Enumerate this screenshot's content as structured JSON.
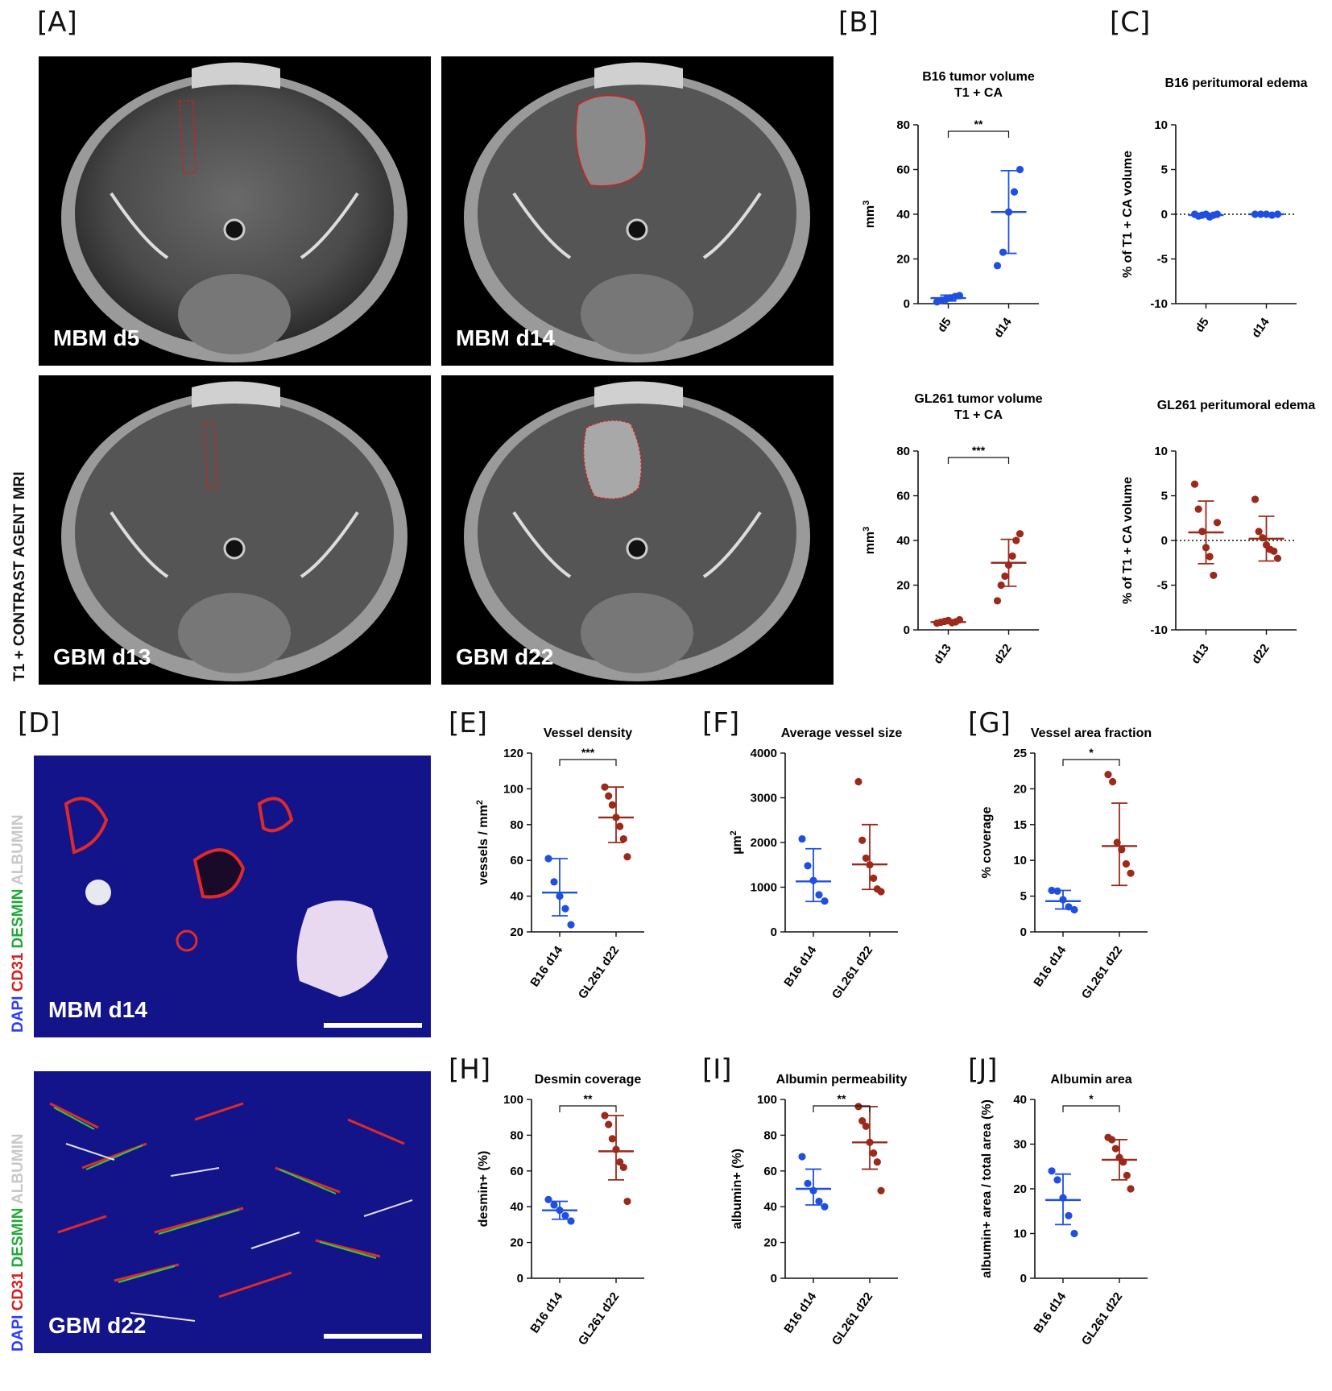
{
  "panel_labels": [
    "[A]",
    "[B]",
    "[C]",
    "[D]",
    "[E]",
    "[F]",
    "[G]",
    "[H]",
    "[I]",
    "[J]"
  ],
  "mri": {
    "side_label": "T1 + CONTRAST AGENT MRI",
    "images": [
      "MBM d5",
      "MBM d14",
      "GBM d13",
      "GBM d22"
    ]
  },
  "micro": {
    "images": [
      "MBM d14",
      "GBM d22"
    ],
    "stain_legend": [
      {
        "text": "DAPI",
        "color": "#2b3cff"
      },
      {
        "text": "CD31",
        "color": "#d42020"
      },
      {
        "text": "DESMIN",
        "color": "#22a83a"
      },
      {
        "text": "ALBUMIN",
        "color": "#c8c8c8"
      }
    ]
  },
  "colors": {
    "blue": "#1f4fe0",
    "red": "#9b2a1c"
  },
  "chart_data": [
    {
      "id": "B1",
      "type": "scatter",
      "title": [
        "B16 tumor volume",
        "T1 + CA"
      ],
      "ylabel": "mm3",
      "ylim": [
        0,
        80
      ],
      "yticks": [
        0,
        20,
        40,
        60,
        80
      ],
      "categories": [
        "d5",
        "d14"
      ],
      "zero_line": false,
      "groups": [
        {
          "category": "d5",
          "color": "blue",
          "mean": 2.5,
          "sd_low": 1.2,
          "sd_high": 3.8,
          "points": [
            0.8,
            1.5,
            2.0,
            2.6,
            3.2,
            3.6
          ]
        },
        {
          "category": "d14",
          "color": "blue",
          "mean": 41,
          "sd_low": 22.5,
          "sd_high": 59.5,
          "points": [
            17,
            23,
            41,
            50,
            60
          ]
        }
      ],
      "sig": "**"
    },
    {
      "id": "C1",
      "type": "scatter",
      "title": [
        "B16 peritumoral edema"
      ],
      "ylabel": "% of T1 + CA volume",
      "ylim": [
        -10,
        10
      ],
      "yticks": [
        -10,
        -5,
        0,
        5,
        10
      ],
      "categories": [
        "d5",
        "d14"
      ],
      "zero_line": true,
      "groups": [
        {
          "category": "d5",
          "color": "blue",
          "mean": -0.1,
          "sd_low": -0.3,
          "sd_high": 0.1,
          "points": [
            0,
            -0.2,
            -0.1,
            0,
            -0.3,
            -0.1,
            0
          ]
        },
        {
          "category": "d14",
          "color": "blue",
          "mean": 0,
          "sd_low": -0.1,
          "sd_high": 0.1,
          "points": [
            0,
            0,
            0,
            -0.1,
            0
          ]
        }
      ],
      "sig": ""
    },
    {
      "id": "B2",
      "type": "scatter",
      "title": [
        "GL261 tumor volume",
        "T1 + CA"
      ],
      "ylabel": "mm3",
      "ylim": [
        0,
        80
      ],
      "yticks": [
        0,
        20,
        40,
        60,
        80
      ],
      "categories": [
        "d13",
        "d22"
      ],
      "zero_line": false,
      "groups": [
        {
          "category": "d13",
          "color": "red",
          "mean": 3.5,
          "sd_low": 2.8,
          "sd_high": 4.3,
          "points": [
            3,
            3.4,
            3.8,
            4.2,
            3.2,
            3.6,
            4.5
          ]
        },
        {
          "category": "d22",
          "color": "red",
          "mean": 30,
          "sd_low": 19.5,
          "sd_high": 40.5,
          "points": [
            13,
            20,
            24,
            29,
            33,
            40,
            43
          ]
        }
      ],
      "sig": "***"
    },
    {
      "id": "C2",
      "type": "scatter",
      "title": [
        "GL261 peritumoral edema"
      ],
      "ylabel": "% of T1 + CA volume",
      "ylim": [
        -10,
        10
      ],
      "yticks": [
        -10,
        -5,
        0,
        5,
        10
      ],
      "categories": [
        "d13",
        "d22"
      ],
      "zero_line": true,
      "groups": [
        {
          "category": "d13",
          "color": "red",
          "mean": 0.9,
          "sd_low": -2.6,
          "sd_high": 4.4,
          "points": [
            6.3,
            3.5,
            1.0,
            -0.8,
            -1.8,
            -3.9,
            2.0
          ]
        },
        {
          "category": "d22",
          "color": "red",
          "mean": 0.2,
          "sd_low": -2.3,
          "sd_high": 2.7,
          "points": [
            4.6,
            1.0,
            0.3,
            -0.5,
            -1.0,
            -1.2,
            -2.0
          ]
        }
      ],
      "sig": ""
    },
    {
      "id": "E",
      "type": "scatter",
      "title": [
        "Vessel density"
      ],
      "ylabel": "vessels / mm2",
      "ylim": [
        20,
        120
      ],
      "yticks": [
        20,
        40,
        60,
        80,
        100,
        120
      ],
      "categories": [
        "B16 d14",
        "GL261 d22"
      ],
      "zero_line": false,
      "groups": [
        {
          "category": "B16 d14",
          "color": "blue",
          "mean": 42,
          "sd_low": 29,
          "sd_high": 61,
          "points": [
            61,
            48,
            40,
            33,
            24
          ]
        },
        {
          "category": "GL261 d22",
          "color": "red",
          "mean": 84,
          "sd_low": 70,
          "sd_high": 101,
          "points": [
            101,
            96,
            91,
            84,
            79,
            72,
            62
          ]
        }
      ],
      "sig": "***"
    },
    {
      "id": "F",
      "type": "scatter",
      "title": [
        "Average vessel size"
      ],
      "ylabel": "µm2",
      "ylim": [
        0,
        4000
      ],
      "yticks": [
        0,
        1000,
        2000,
        3000,
        4000
      ],
      "categories": [
        "B16 d14",
        "GL261 d22"
      ],
      "zero_line": false,
      "groups": [
        {
          "category": "B16 d14",
          "color": "blue",
          "mean": 1130,
          "sd_low": 680,
          "sd_high": 1860,
          "points": [
            2080,
            1480,
            1150,
            830,
            690
          ]
        },
        {
          "category": "GL261 d22",
          "color": "red",
          "mean": 1510,
          "sd_low": 950,
          "sd_high": 2400,
          "points": [
            3360,
            2050,
            1650,
            1500,
            1200,
            960,
            900
          ]
        }
      ],
      "sig": ""
    },
    {
      "id": "G",
      "type": "scatter",
      "title": [
        "Vessel area fraction"
      ],
      "ylabel": "% coverage",
      "ylim": [
        0,
        25
      ],
      "yticks": [
        0,
        5,
        10,
        15,
        20,
        25
      ],
      "categories": [
        "B16 d14",
        "GL261 d22"
      ],
      "zero_line": false,
      "groups": [
        {
          "category": "B16 d14",
          "color": "blue",
          "mean": 4.3,
          "sd_low": 3.2,
          "sd_high": 5.8,
          "points": [
            5.8,
            5.7,
            4.5,
            3.5,
            3.1
          ]
        },
        {
          "category": "GL261 d22",
          "color": "red",
          "mean": 12,
          "sd_low": 6.5,
          "sd_high": 18,
          "points": [
            22,
            21,
            12.5,
            11.5,
            9.5,
            8.2
          ]
        }
      ],
      "sig": "*"
    },
    {
      "id": "H",
      "type": "scatter",
      "title": [
        "Desmin coverage"
      ],
      "ylabel": "desmin+ (%)",
      "ylim": [
        0,
        100
      ],
      "yticks": [
        0,
        20,
        40,
        60,
        80,
        100
      ],
      "categories": [
        "B16 d14",
        "GL261 d22"
      ],
      "zero_line": false,
      "groups": [
        {
          "category": "B16 d14",
          "color": "blue",
          "mean": 38,
          "sd_low": 33,
          "sd_high": 43,
          "points": [
            44,
            41,
            38,
            35,
            32
          ]
        },
        {
          "category": "GL261 d22",
          "color": "red",
          "mean": 71,
          "sd_low": 55,
          "sd_high": 91,
          "points": [
            91,
            86,
            78,
            72,
            65,
            62,
            43
          ]
        }
      ],
      "sig": "**"
    },
    {
      "id": "I",
      "type": "scatter",
      "title": [
        "Albumin permeability"
      ],
      "ylabel": "albumin+ (%)",
      "ylim": [
        0,
        100
      ],
      "yticks": [
        0,
        20,
        40,
        60,
        80,
        100
      ],
      "categories": [
        "B16 d14",
        "GL261 d22"
      ],
      "zero_line": false,
      "groups": [
        {
          "category": "B16 d14",
          "color": "blue",
          "mean": 50,
          "sd_low": 41,
          "sd_high": 61,
          "points": [
            68,
            53,
            49,
            43,
            40
          ]
        },
        {
          "category": "GL261 d22",
          "color": "red",
          "mean": 76,
          "sd_low": 61,
          "sd_high": 96,
          "points": [
            96,
            88,
            85,
            76,
            70,
            65,
            49
          ]
        }
      ],
      "sig": "**"
    },
    {
      "id": "J",
      "type": "scatter",
      "title": [
        "Albumin area"
      ],
      "ylabel": "albumin+ area / total area (%)",
      "ylim": [
        0,
        40
      ],
      "yticks": [
        0,
        10,
        20,
        30,
        40
      ],
      "categories": [
        "B16 d14",
        "GL261 d22"
      ],
      "zero_line": false,
      "groups": [
        {
          "category": "B16 d14",
          "color": "blue",
          "mean": 17.5,
          "sd_low": 12,
          "sd_high": 23.3,
          "points": [
            24,
            22,
            18,
            14,
            10
          ]
        },
        {
          "category": "GL261 d22",
          "color": "red",
          "mean": 26.5,
          "sd_low": 22,
          "sd_high": 31,
          "points": [
            31.5,
            31,
            29,
            27,
            26,
            23,
            20
          ]
        }
      ],
      "sig": "*"
    }
  ]
}
